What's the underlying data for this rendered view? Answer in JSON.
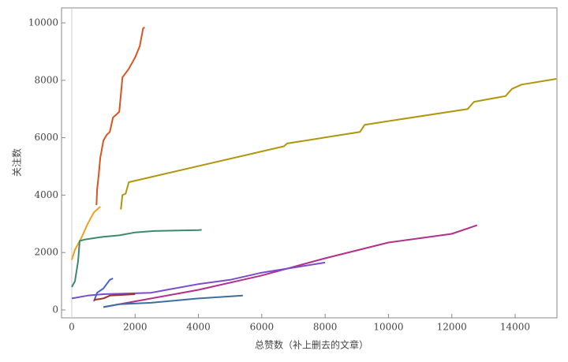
{
  "chart_data": {
    "type": "line",
    "xlabel": "总赞数（补上删去的文章）",
    "ylabel": "关注数",
    "xlim": [
      -324,
      15321
    ],
    "ylim": [
      -275,
      10522
    ],
    "xticks": [
      0,
      2000,
      4000,
      6000,
      8000,
      10000,
      12000,
      14000
    ],
    "yticks": [
      0,
      2000,
      4000,
      6000,
      8000,
      10000
    ],
    "series": [
      {
        "color": "#d9541e",
        "x": [
          780,
          800,
          850,
          900,
          1000,
          1100,
          1200,
          1300,
          1500,
          1600,
          1800,
          2000,
          2150,
          2250,
          2300
        ],
        "values": [
          3650,
          4200,
          4700,
          5300,
          5900,
          6100,
          6200,
          6700,
          6900,
          8100,
          8400,
          8800,
          9200,
          9800,
          9850
        ]
      },
      {
        "color": "#b0960c",
        "x": [
          1550,
          1600,
          1700,
          1800,
          6700,
          6800,
          9100,
          9250,
          12500,
          12700,
          13700,
          13900,
          14200,
          15300
        ],
        "values": [
          3500,
          4000,
          4050,
          4450,
          5700,
          5800,
          6200,
          6450,
          7000,
          7250,
          7450,
          7700,
          7850,
          8050
        ]
      },
      {
        "color": "#f0a020",
        "x": [
          0,
          100,
          300,
          500,
          700,
          900
        ],
        "values": [
          1750,
          2100,
          2500,
          3000,
          3400,
          3600
        ]
      },
      {
        "color": "#3a8a6a",
        "x": [
          0,
          100,
          200,
          250,
          400,
          1000,
          1500,
          2000,
          2600,
          4000,
          4100
        ],
        "values": [
          800,
          1000,
          1700,
          2400,
          2450,
          2550,
          2600,
          2700,
          2750,
          2780,
          2790
        ]
      },
      {
        "color": "#b0308a",
        "x": [
          1000,
          2000,
          4000,
          6000,
          8000,
          10000,
          12000,
          12800
        ],
        "values": [
          100,
          300,
          700,
          1200,
          1800,
          2350,
          2650,
          2950
        ]
      },
      {
        "color": "#7a4dc9",
        "x": [
          0,
          500,
          1000,
          2500,
          3000,
          4000,
          5000,
          6000,
          8000
        ],
        "values": [
          400,
          500,
          550,
          600,
          700,
          900,
          1050,
          1300,
          1650
        ]
      },
      {
        "color": "#4a60c0",
        "x": [
          700,
          800,
          1000,
          1200,
          1300
        ],
        "values": [
          300,
          600,
          750,
          1050,
          1100
        ]
      },
      {
        "color": "#3b6fa0",
        "x": [
          1000,
          1500,
          2500,
          4000,
          5400
        ],
        "values": [
          100,
          200,
          250,
          400,
          500
        ]
      },
      {
        "color": "#a03030",
        "x": [
          700,
          1000,
          1200,
          2000
        ],
        "values": [
          350,
          400,
          500,
          550
        ]
      }
    ]
  }
}
